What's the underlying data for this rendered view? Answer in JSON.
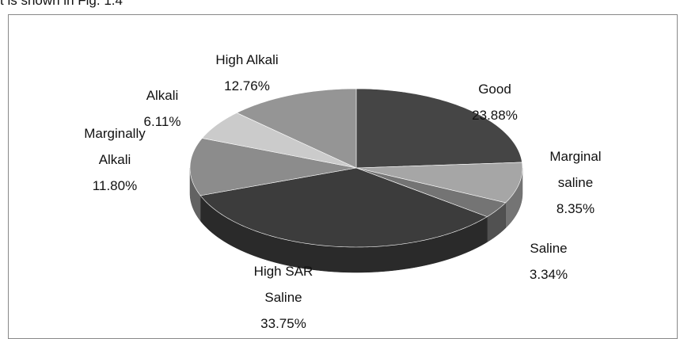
{
  "page_text": "t is shown in Fig. 1.4",
  "chart_data": {
    "type": "pie",
    "categories": [
      "Good",
      "Marginal saline",
      "Saline",
      "High SAR Saline",
      "Marginally Alkali",
      "Alkali",
      "High Alkali"
    ],
    "values": [
      23.88,
      8.35,
      3.34,
      33.75,
      11.8,
      6.11,
      12.76
    ],
    "value_labels": [
      "23.88%",
      "8.35%",
      "3.34%",
      "33.75%",
      "11.80%",
      "6.11%",
      "12.76%"
    ],
    "colors": [
      "#454545",
      "#a6a6a6",
      "#747474",
      "#3c3c3c",
      "#8c8c8c",
      "#cbcbcb",
      "#959595"
    ]
  }
}
